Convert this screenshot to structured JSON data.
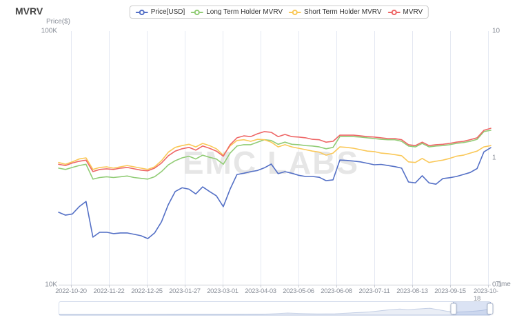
{
  "title": "MVRV",
  "watermark": "EMC LABS",
  "chart_data": {
    "type": "line",
    "x": {
      "name": "Time",
      "ticks": [
        "2022-10-20",
        "2022-11-22",
        "2022-12-25",
        "2023-01-27",
        "2023-03-01",
        "2023-04-03",
        "2023-05-06",
        "2023-06-08",
        "2023-07-11",
        "2023-08-13",
        "2023-09-15",
        "2023-10-18"
      ]
    },
    "y_left": {
      "name": "Price($)",
      "scale": "log",
      "min": 10000,
      "max": 100000,
      "tick_labels": [
        "100K",
        "10K"
      ]
    },
    "y_right": {
      "scale": "log",
      "min": 0.1,
      "max": 10,
      "tick_labels": [
        "10",
        "1",
        "0.1"
      ]
    },
    "series": [
      {
        "name": "Price[USD]",
        "axis": "left",
        "color": "#5470C6",
        "values": [
          19300,
          18800,
          19000,
          20300,
          21300,
          15400,
          16100,
          16100,
          15900,
          16000,
          16000,
          15800,
          15600,
          15200,
          16000,
          17700,
          20700,
          23300,
          24100,
          23800,
          22800,
          24300,
          23300,
          22400,
          20300,
          23800,
          27200,
          27500,
          27900,
          28200,
          28900,
          29900,
          27400,
          27900,
          27500,
          27000,
          26700,
          26700,
          26500,
          25700,
          25900,
          31000,
          30900,
          30700,
          30500,
          30100,
          29700,
          29800,
          29500,
          29200,
          28800,
          25400,
          25200,
          26900,
          25200,
          24900,
          26200,
          26400,
          26700,
          27200,
          27700,
          28700,
          33400,
          34700
        ]
      },
      {
        "name": "Long Term Holder MVRV",
        "axis": "right",
        "color": "#91CC75",
        "values": [
          0.83,
          0.81,
          0.84,
          0.87,
          0.89,
          0.68,
          0.7,
          0.71,
          0.7,
          0.71,
          0.72,
          0.7,
          0.69,
          0.68,
          0.71,
          0.78,
          0.88,
          0.95,
          1.0,
          1.03,
          0.98,
          1.05,
          1.01,
          0.98,
          0.89,
          1.09,
          1.24,
          1.27,
          1.27,
          1.33,
          1.39,
          1.37,
          1.28,
          1.33,
          1.28,
          1.27,
          1.25,
          1.24,
          1.22,
          1.18,
          1.21,
          1.47,
          1.47,
          1.47,
          1.46,
          1.44,
          1.42,
          1.4,
          1.39,
          1.39,
          1.35,
          1.24,
          1.22,
          1.3,
          1.22,
          1.24,
          1.25,
          1.27,
          1.3,
          1.32,
          1.35,
          1.4,
          1.61,
          1.65
        ]
      },
      {
        "name": "Short Term Holder MVRV",
        "axis": "right",
        "color": "#FAC858",
        "values": [
          0.92,
          0.89,
          0.93,
          0.98,
          1.0,
          0.81,
          0.84,
          0.85,
          0.83,
          0.85,
          0.87,
          0.85,
          0.83,
          0.81,
          0.85,
          0.95,
          1.11,
          1.21,
          1.25,
          1.28,
          1.22,
          1.3,
          1.25,
          1.18,
          1.05,
          1.24,
          1.37,
          1.39,
          1.35,
          1.4,
          1.39,
          1.33,
          1.22,
          1.27,
          1.22,
          1.19,
          1.16,
          1.13,
          1.11,
          1.05,
          1.09,
          1.22,
          1.21,
          1.19,
          1.16,
          1.13,
          1.12,
          1.09,
          1.08,
          1.06,
          1.04,
          0.93,
          0.92,
          0.99,
          0.92,
          0.94,
          0.96,
          0.99,
          1.03,
          1.05,
          1.09,
          1.13,
          1.22,
          1.25
        ]
      },
      {
        "name": "MVRV",
        "axis": "right",
        "color": "#EE6666",
        "values": [
          0.89,
          0.87,
          0.91,
          0.94,
          0.96,
          0.78,
          0.81,
          0.82,
          0.81,
          0.83,
          0.84,
          0.82,
          0.8,
          0.79,
          0.83,
          0.91,
          1.04,
          1.13,
          1.18,
          1.21,
          1.15,
          1.24,
          1.19,
          1.13,
          1.03,
          1.27,
          1.44,
          1.49,
          1.47,
          1.55,
          1.61,
          1.59,
          1.47,
          1.53,
          1.47,
          1.46,
          1.44,
          1.4,
          1.39,
          1.33,
          1.35,
          1.51,
          1.51,
          1.51,
          1.49,
          1.47,
          1.46,
          1.44,
          1.42,
          1.42,
          1.39,
          1.27,
          1.25,
          1.33,
          1.25,
          1.27,
          1.28,
          1.3,
          1.33,
          1.35,
          1.39,
          1.44,
          1.65,
          1.71
        ]
      }
    ],
    "datazoom": {
      "start_pct": 91.3,
      "end_pct": 99.8,
      "shadow_profile": [
        [
          0,
          0.02
        ],
        [
          10,
          0.02
        ],
        [
          20,
          0.02
        ],
        [
          30,
          0.03
        ],
        [
          40,
          0.03
        ],
        [
          48,
          0.04
        ],
        [
          53,
          0.14
        ],
        [
          56,
          0.1
        ],
        [
          60,
          0.06
        ],
        [
          64,
          0.08
        ],
        [
          68,
          0.15
        ],
        [
          72,
          0.22
        ],
        [
          76,
          0.38
        ],
        [
          79,
          0.46
        ],
        [
          81,
          0.4
        ],
        [
          83,
          0.46
        ],
        [
          86,
          0.52
        ],
        [
          88,
          0.4
        ],
        [
          90,
          0.28
        ],
        [
          92,
          0.2
        ],
        [
          94,
          0.24
        ],
        [
          96,
          0.28
        ],
        [
          98,
          0.34
        ],
        [
          100,
          0.46
        ]
      ]
    }
  }
}
